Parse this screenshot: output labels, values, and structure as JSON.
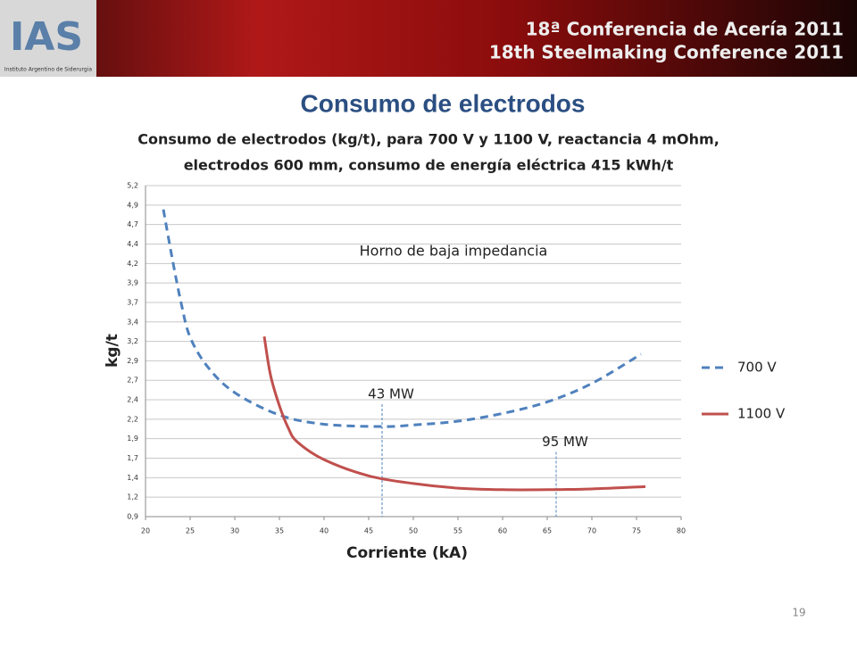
{
  "header": {
    "logo": "IAS",
    "institute": "Instituto Argentino de Siderurgia",
    "line1": "18ª Conferencia de Acería 2011",
    "line2": "18th Steelmaking Conference 2011"
  },
  "slide_title": "Consumo de electrodos",
  "page_number": "19",
  "chart_data": {
    "type": "line",
    "title": [
      "Consumo de electrodos (kg/t), para 700 V y 1100 V, reactancia 4 mOhm,",
      "electrodos 600 mm, consumo de energía eléctrica 415 kWh/t"
    ],
    "x_label": "Corriente (kA)",
    "y_label": "kg/t",
    "xlim": [
      20,
      80
    ],
    "xticks": [
      20,
      25,
      30,
      35,
      40,
      45,
      50,
      55,
      60,
      65,
      70,
      75,
      80
    ],
    "ylim": [
      0.9,
      5.2
    ],
    "yticks": [
      {
        "value": 0.9,
        "label": "0,9"
      },
      {
        "value": 1.153,
        "label": "1,2"
      },
      {
        "value": 1.406,
        "label": "1,4"
      },
      {
        "value": 1.659,
        "label": "1,7"
      },
      {
        "value": 1.912,
        "label": "1,9"
      },
      {
        "value": 2.165,
        "label": "2,2"
      },
      {
        "value": 2.418,
        "label": "2,4"
      },
      {
        "value": 2.671,
        "label": "2,7"
      },
      {
        "value": 2.924,
        "label": "2,9"
      },
      {
        "value": 3.176,
        "label": "3,2"
      },
      {
        "value": 3.429,
        "label": "3,4"
      },
      {
        "value": 3.682,
        "label": "3,7"
      },
      {
        "value": 3.935,
        "label": "3,9"
      },
      {
        "value": 4.188,
        "label": "4,2"
      },
      {
        "value": 4.441,
        "label": "4,4"
      },
      {
        "value": 4.694,
        "label": "4,7"
      },
      {
        "value": 4.947,
        "label": "4,9"
      },
      {
        "value": 5.2,
        "label": "5,2"
      }
    ],
    "grid": true,
    "legend": "right",
    "series": [
      {
        "name": "700 V",
        "color": "#4f81bd",
        "dash": true,
        "x": [
          22,
          23,
          24,
          25,
          27,
          30,
          35,
          40,
          46.5,
          50,
          55,
          60,
          65,
          70,
          75.5
        ],
        "values": [
          4.89,
          4.25,
          3.67,
          3.23,
          2.84,
          2.51,
          2.22,
          2.1,
          2.07,
          2.09,
          2.14,
          2.24,
          2.39,
          2.63,
          3.01
        ]
      },
      {
        "name": "1100 V",
        "color": "#c0504d",
        "dash": false,
        "x": [
          33.3,
          34,
          35,
          36,
          37,
          40,
          45,
          50,
          55,
          60,
          65,
          70,
          76
        ],
        "values": [
          3.24,
          2.74,
          2.34,
          2.05,
          1.87,
          1.64,
          1.43,
          1.33,
          1.27,
          1.25,
          1.25,
          1.26,
          1.29
        ]
      }
    ],
    "annotations": [
      {
        "text": "43 MW",
        "x": 46.5,
        "y": 2.07
      },
      {
        "text": "95 MW",
        "x": 66,
        "y": 1.45
      }
    ],
    "note": "Horno de baja impedancia"
  }
}
